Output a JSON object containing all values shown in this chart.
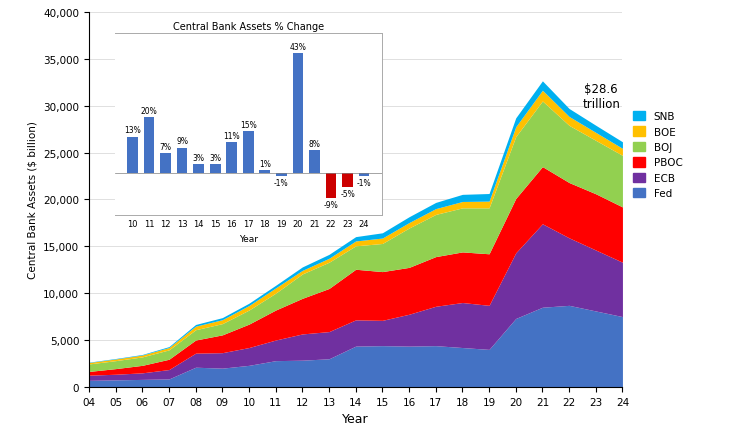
{
  "years": [
    4,
    5,
    6,
    7,
    8,
    9,
    10,
    11,
    12,
    13,
    14,
    15,
    16,
    17,
    18,
    19,
    20,
    21,
    22,
    23,
    24
  ],
  "Fed": [
    700,
    750,
    800,
    850,
    2100,
    2000,
    2300,
    2800,
    2850,
    3000,
    4350,
    4400,
    4350,
    4400,
    4200,
    4000,
    7300,
    8500,
    8700,
    8100,
    7500
  ],
  "ECB": [
    550,
    600,
    700,
    1000,
    1500,
    1650,
    1900,
    2200,
    2800,
    2900,
    2800,
    2700,
    3400,
    4200,
    4800,
    4700,
    7000,
    8900,
    7200,
    6500,
    5800
  ],
  "PBOC": [
    400,
    600,
    800,
    1100,
    1400,
    1900,
    2500,
    3200,
    3800,
    4600,
    5400,
    5200,
    5000,
    5300,
    5400,
    5500,
    5800,
    6100,
    5900,
    6000,
    5900
  ],
  "BOJ": [
    800,
    850,
    900,
    1000,
    1100,
    1200,
    1500,
    1800,
    2600,
    2800,
    2500,
    3000,
    4200,
    4500,
    4700,
    4900,
    6600,
    7000,
    6100,
    5700,
    5500
  ],
  "BOE": [
    150,
    180,
    200,
    250,
    380,
    420,
    480,
    560,
    380,
    420,
    520,
    580,
    580,
    620,
    680,
    720,
    1050,
    1150,
    950,
    850,
    750
  ],
  "SNB": [
    40,
    50,
    60,
    100,
    180,
    220,
    250,
    280,
    370,
    420,
    460,
    560,
    620,
    660,
    760,
    810,
    950,
    1000,
    850,
    760,
    700
  ],
  "colors": {
    "Fed": "#4472C4",
    "ECB": "#7030A0",
    "PBOC": "#FF0000",
    "BOJ": "#92D050",
    "BOE": "#FFC000",
    "SNB": "#00B0F0"
  },
  "inset_years": [
    10,
    11,
    12,
    13,
    14,
    15,
    16,
    17,
    18,
    19,
    20,
    21,
    22,
    23,
    24
  ],
  "inset_values": [
    13,
    20,
    7,
    9,
    3,
    3,
    11,
    15,
    1,
    -1,
    43,
    8,
    -9,
    -5,
    -1
  ],
  "inset_bar_colors": [
    "#4472C4",
    "#4472C4",
    "#4472C4",
    "#4472C4",
    "#4472C4",
    "#4472C4",
    "#4472C4",
    "#4472C4",
    "#4472C4",
    "#4472C4",
    "#4472C4",
    "#4472C4",
    "#CC0000",
    "#CC0000",
    "#4472C4"
  ],
  "xlabel": "Year",
  "ylabel": "Central Bank Assets ($ billion)",
  "ylim": [
    0,
    40000
  ],
  "annotation": "$28.6\ntrillion",
  "inset_title": "Central Bank Assets % Change"
}
